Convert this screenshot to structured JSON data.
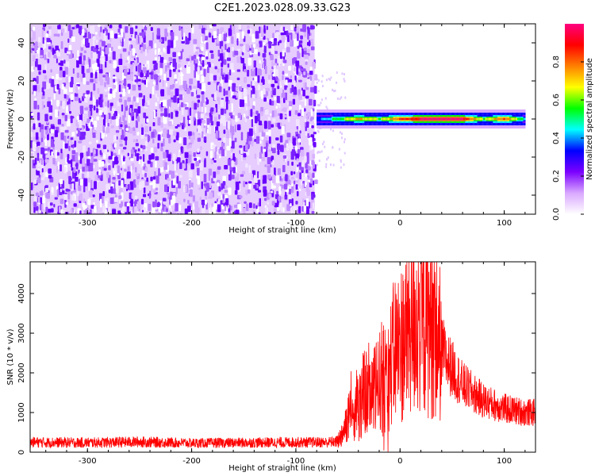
{
  "title": "C2E1.2023.028.09.33.G23",
  "chart_data": [
    {
      "type": "heatmap",
      "xlabel": "Height of straight line (km)",
      "ylabel": "Frequency (Hz)",
      "xlim": [
        -355,
        130
      ],
      "ylim": [
        -50,
        50
      ],
      "xticks": [
        -300,
        -200,
        -100,
        0,
        100
      ],
      "yticks": [
        -40,
        -20,
        0,
        20,
        40
      ],
      "noise_region_x": [
        -355,
        -82
      ],
      "signal_band": [
        {
          "x": -80,
          "freq": 0,
          "amplitude": 0.35
        },
        {
          "x": -60,
          "freq": 0,
          "amplitude": 0.55
        },
        {
          "x": -40,
          "freq": 0,
          "amplitude": 0.75
        },
        {
          "x": -20,
          "freq": 0,
          "amplitude": 0.6
        },
        {
          "x": 0,
          "freq": 0,
          "amplitude": 0.85
        },
        {
          "x": 20,
          "freq": 0,
          "amplitude": 0.95
        },
        {
          "x": 40,
          "freq": 0,
          "amplitude": 1.0
        },
        {
          "x": 60,
          "freq": 0,
          "amplitude": 0.95
        },
        {
          "x": 80,
          "freq": 0,
          "amplitude": 0.6
        },
        {
          "x": 100,
          "freq": 0,
          "amplitude": 0.85
        },
        {
          "x": 120,
          "freq": 0,
          "amplitude": 0.45
        }
      ],
      "colorbar": {
        "label": "Normalized spectral amplitude",
        "range": [
          0,
          1
        ],
        "ticks": [
          "0.0",
          "0.2",
          "0.4",
          "0.6",
          "0.8"
        ],
        "colors": [
          "#ffffff",
          "#d9a8ff",
          "#7b00ff",
          "#0000ff",
          "#00ffff",
          "#00ff00",
          "#ffff00",
          "#ff8000",
          "#ff0000",
          "#ff0080"
        ]
      }
    },
    {
      "type": "line",
      "xlabel": "Height of straight line (km)",
      "ylabel": "SNR (10 * v/v)",
      "xlim": [
        -355,
        130
      ],
      "ylim": [
        0,
        4800
      ],
      "xticks": [
        -300,
        -200,
        -100,
        0,
        100
      ],
      "yticks": [
        0,
        1000,
        2000,
        3000,
        4000
      ],
      "series": [
        {
          "color": "#ff0000",
          "x": [
            -355,
            -300,
            -250,
            -200,
            -150,
            -100,
            -70,
            -60,
            -55,
            -50,
            -45,
            -40,
            -35,
            -30,
            -25,
            -20,
            -15,
            -10,
            -5,
            0,
            5,
            10,
            15,
            20,
            25,
            30,
            35,
            40,
            45,
            50,
            55,
            60,
            70,
            80,
            90,
            100,
            110,
            120,
            130
          ],
          "y": [
            250,
            240,
            260,
            230,
            240,
            250,
            250,
            270,
            500,
            900,
            1300,
            1100,
            1500,
            1600,
            1500,
            1800,
            2000,
            2100,
            2600,
            2700,
            2900,
            3300,
            3300,
            3400,
            3300,
            3200,
            3000,
            2600,
            2300,
            2100,
            1900,
            1700,
            1500,
            1300,
            1200,
            1100,
            1050,
            1000,
            1000
          ]
        }
      ]
    }
  ]
}
